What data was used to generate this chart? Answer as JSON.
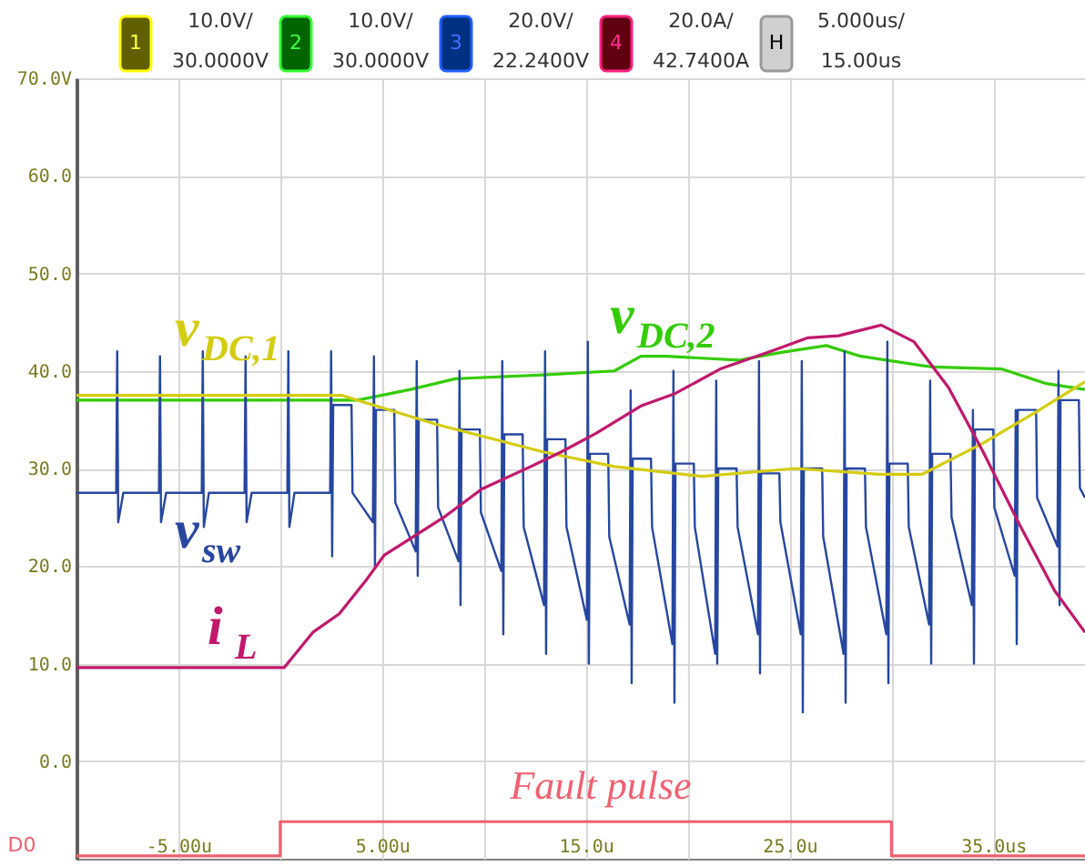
{
  "chart_data": {
    "type": "line",
    "xlim": [
      -10,
      39.5
    ],
    "ylim": [
      -10,
      70
    ],
    "xticks": [
      {
        "value": -5,
        "label": "-5.00u"
      },
      {
        "value": 0,
        "label": null
      },
      {
        "value": 5,
        "label": "5.00u"
      },
      {
        "value": 10,
        "label": null
      },
      {
        "value": 15,
        "label": "15.0u"
      },
      {
        "value": 20,
        "label": null
      },
      {
        "value": 25,
        "label": "25.0u"
      },
      {
        "value": 30,
        "label": null
      },
      {
        "value": 35,
        "label": "35.0us"
      }
    ],
    "yticks": [
      {
        "value": 70,
        "label": "70.0V"
      },
      {
        "value": 60,
        "label": "60.0"
      },
      {
        "value": 50,
        "label": "50.0"
      },
      {
        "value": 40,
        "label": "40.0"
      },
      {
        "value": 30,
        "label": "30.0"
      },
      {
        "value": 20,
        "label": "20.0"
      },
      {
        "value": 10,
        "label": "10.0"
      },
      {
        "value": 0,
        "label": "0.0"
      }
    ],
    "grid": true,
    "annotations": [
      "1",
      "10.0V/",
      "30.0000V",
      "2",
      "10.0V/",
      "30.0000V",
      "3",
      "20.0V/",
      "22.2400V",
      "4",
      "20.0A/",
      "42.7400A",
      "H",
      "5.000us/",
      "15.00us",
      "D0"
    ],
    "series": [
      {
        "name": "v$_{DC,2}$",
        "color": "#33cc00",
        "x": [
          -10,
          3.8,
          6.4,
          8.6,
          12.9,
          16.4,
          17.7,
          19,
          22.5,
          24.6,
          26.8,
          28.5,
          32,
          35.4,
          37.6,
          39.5
        ],
        "values": [
          37,
          37,
          38.1,
          39.2,
          39.6,
          40,
          41.5,
          41.5,
          41.1,
          41.9,
          42.6,
          41.5,
          40.4,
          40.2,
          38.7,
          38.1
        ]
      },
      {
        "name": "v$_{sw}$",
        "color": "#2646a0",
        "x": [
          -10,
          -8.05,
          -8,
          -7.95,
          -7.7,
          -5.95,
          -5.9,
          -5.85,
          -5.6,
          -3.85,
          -3.8,
          -3.75,
          -3.5,
          -1.75,
          -1.7,
          -1.65,
          -1.4,
          0.35,
          0.4,
          0.45,
          0.7,
          2.45,
          2.5,
          2.55,
          2.6,
          3.5,
          3.55,
          4.55,
          4.6,
          4.65,
          4.7,
          5.6,
          5.65,
          6.65,
          6.7,
          6.75,
          6.8,
          7.7,
          7.75,
          8.75,
          8.8,
          8.85,
          8.9,
          9.8,
          9.85,
          10.85,
          10.9,
          10.95,
          11,
          11.9,
          11.95,
          12.95,
          13,
          13.05,
          13.1,
          14,
          14.05,
          15.05,
          15.1,
          15.15,
          15.2,
          16.1,
          16.15,
          17.15,
          17.2,
          17.25,
          17.3,
          18.2,
          18.25,
          19.25,
          19.3,
          19.35,
          19.4,
          20.3,
          20.35,
          21.35,
          21.4,
          21.45,
          21.5,
          22.4,
          22.45,
          23.45,
          23.5,
          23.55,
          23.6,
          24.5,
          24.55,
          25.55,
          25.6,
          25.65,
          25.7,
          26.6,
          26.65,
          27.65,
          27.7,
          27.75,
          27.8,
          28.7,
          28.75,
          29.75,
          29.8,
          29.85,
          29.9,
          30.8,
          30.85,
          31.85,
          31.9,
          31.95,
          32,
          32.9,
          32.95,
          33.95,
          34,
          34.05,
          34.1,
          35,
          35.05,
          36.05,
          36.1,
          36.15,
          36.2,
          37.1,
          37.15,
          38.15,
          38.2,
          38.25,
          38.3,
          39.2,
          39.25,
          39.5
        ],
        "values": [
          27.5,
          27.5,
          42,
          24.5,
          27.5,
          27.5,
          41.5,
          24.5,
          27.5,
          27.5,
          42,
          24,
          27.5,
          27.5,
          41.5,
          24.5,
          27.5,
          27.5,
          42,
          24,
          27.5,
          27.5,
          42,
          21,
          36.5,
          36.5,
          27.5,
          24.5,
          41.5,
          20,
          36,
          36,
          26.5,
          21.5,
          41,
          19,
          35,
          35,
          26,
          20.5,
          40,
          16,
          34,
          34,
          25.5,
          19.5,
          41,
          13,
          33.5,
          33.5,
          24,
          16,
          42,
          11,
          33,
          33,
          24,
          14.5,
          43,
          10,
          31.5,
          31.5,
          23,
          14,
          38,
          8,
          31,
          31,
          24,
          12,
          40,
          6,
          30.5,
          30.5,
          24,
          11,
          39,
          10,
          30,
          30,
          24,
          13,
          41,
          9,
          29.5,
          29.5,
          24.5,
          13,
          41,
          5,
          30,
          30,
          23,
          11,
          42,
          6,
          30,
          30,
          24,
          13,
          43,
          8,
          30.5,
          30.5,
          24,
          14,
          39,
          10,
          31.5,
          31.5,
          25,
          16,
          36,
          10,
          34,
          34,
          26,
          19,
          36,
          12,
          36,
          36,
          27,
          22,
          40,
          16,
          37,
          37,
          28,
          27
        ]
      },
      {
        "name": "v$_{DC,1}$",
        "color": "#d4cc10",
        "x": [
          -10,
          3,
          7.7,
          12.9,
          16.4,
          20.7,
          25.3,
          29.4,
          31.5,
          34.5,
          37.1,
          39.5
        ],
        "values": [
          37.5,
          37.5,
          34.5,
          31.7,
          30.2,
          29.2,
          30,
          29.4,
          29.4,
          32.6,
          35.8,
          38.9
        ]
      },
      {
        "name": "i$_{L}$",
        "color": "#c0186c",
        "x": [
          -10,
          0.2,
          1.6,
          2.9,
          4.2,
          5.1,
          6,
          8.1,
          9.9,
          12.3,
          13.8,
          15.5,
          17.7,
          19.4,
          21.6,
          24.2,
          25.9,
          27.4,
          29.5,
          31.1,
          32.8,
          34.5,
          36.3,
          38,
          39.5
        ],
        "values": [
          9.6,
          9.6,
          13.2,
          15.1,
          18.5,
          21.1,
          22.3,
          25.1,
          27.9,
          30.2,
          31.7,
          33.6,
          36.4,
          37.7,
          40.2,
          42.1,
          43.4,
          43.6,
          44.7,
          43,
          38.3,
          31.7,
          24.2,
          17.5,
          13.2
        ]
      },
      {
        "name": "Fault pulse",
        "type": "step",
        "color": "#f06070",
        "x": [
          -10,
          0,
          30,
          39.5
        ],
        "values": [
          -9.7,
          -6.2,
          -9.7,
          -9.7
        ]
      }
    ]
  }
}
